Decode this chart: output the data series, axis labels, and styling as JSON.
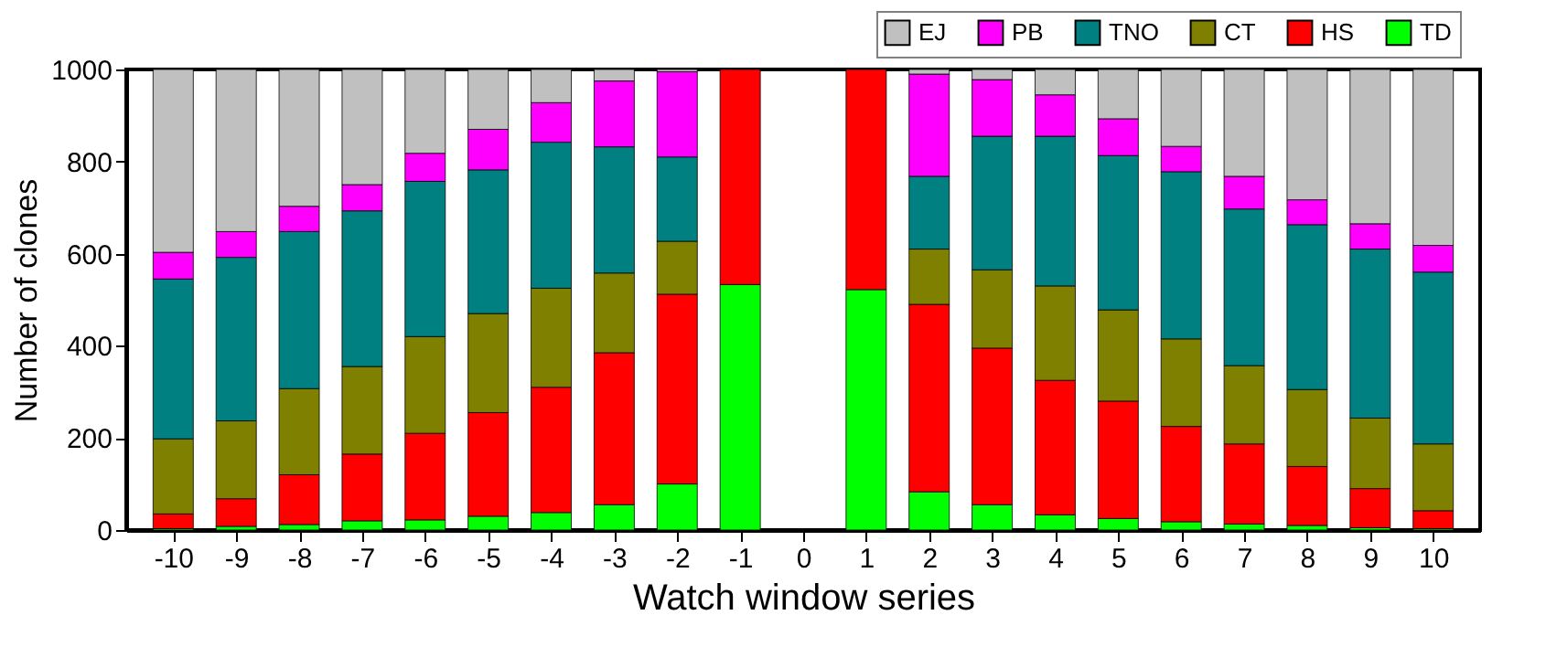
{
  "chart_data": {
    "type": "bar",
    "stacked": true,
    "xlabel": "Watch window series",
    "ylabel": "Number of clones",
    "categories": [
      "-10",
      "-9",
      "-8",
      "-7",
      "-6",
      "-5",
      "-4",
      "-3",
      "-2",
      "-1",
      "0",
      "1",
      "2",
      "3",
      "4",
      "5",
      "6",
      "7",
      "8",
      "9",
      "10"
    ],
    "ylim": [
      0,
      1000
    ],
    "yticks": [
      0,
      200,
      400,
      600,
      800,
      1000
    ],
    "legend": "top right",
    "grid": false,
    "series": [
      {
        "name": "TD",
        "color": "#00ff00",
        "values": [
          3,
          8,
          12,
          20,
          22,
          30,
          38,
          55,
          100,
          533,
          null,
          522,
          83,
          55,
          33,
          25,
          18,
          13,
          10,
          5,
          3
        ]
      },
      {
        "name": "HS",
        "color": "#ff0000",
        "values": [
          32,
          60,
          108,
          145,
          188,
          225,
          272,
          330,
          412,
          467,
          null,
          478,
          407,
          340,
          292,
          255,
          207,
          174,
          128,
          85,
          39
        ]
      },
      {
        "name": "CT",
        "color": "#808000",
        "values": [
          163,
          169,
          187,
          190,
          210,
          215,
          215,
          173,
          115,
          null,
          null,
          null,
          120,
          170,
          205,
          198,
          190,
          170,
          167,
          153,
          145
        ]
      },
      {
        "name": "TNO",
        "color": "#008080",
        "values": [
          347,
          355,
          341,
          338,
          337,
          312,
          317,
          274,
          183,
          null,
          null,
          null,
          158,
          290,
          325,
          335,
          363,
          340,
          358,
          367,
          373
        ]
      },
      {
        "name": "PB",
        "color": "#ff00ff",
        "values": [
          58,
          56,
          55,
          57,
          61,
          88,
          86,
          143,
          185,
          null,
          null,
          null,
          222,
          123,
          90,
          80,
          55,
          71,
          54,
          55,
          58
        ]
      },
      {
        "name": "EJ",
        "color": "#c0c0c0",
        "values": [
          397,
          352,
          297,
          250,
          182,
          130,
          72,
          25,
          5,
          null,
          null,
          null,
          10,
          22,
          55,
          107,
          167,
          232,
          283,
          335,
          382
        ]
      }
    ]
  }
}
